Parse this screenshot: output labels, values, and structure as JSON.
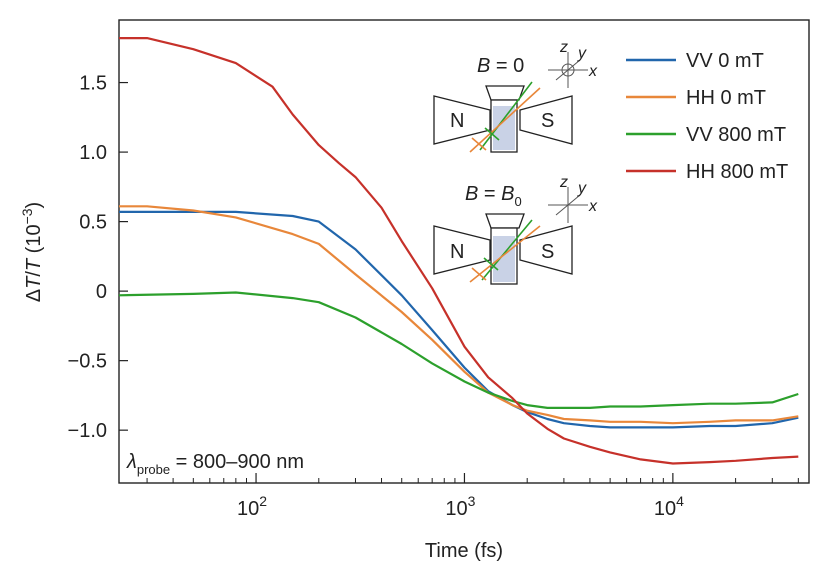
{
  "chart_data": {
    "type": "line",
    "x_scale": "log",
    "xlim": [
      22,
      45000
    ],
    "ylim": [
      -1.38,
      1.95
    ],
    "xlabel": "Time (fs)",
    "ylabel": {
      "delta": "Δ",
      "t1": "T",
      "slash": "/",
      "t2": "T",
      "unit_open": " (10",
      "unit_exp": "−3",
      "unit_close": ")"
    },
    "x_ticks": [
      {
        "value": 100,
        "base": "10",
        "exp": "2"
      },
      {
        "value": 1000,
        "base": "10",
        "exp": "3"
      },
      {
        "value": 10000,
        "base": "10",
        "exp": "4"
      }
    ],
    "y_ticks": [
      {
        "value": 1.5,
        "label": "1.5"
      },
      {
        "value": 1.0,
        "label": "1.0"
      },
      {
        "value": 0.5,
        "label": "0.5"
      },
      {
        "value": 0,
        "label": "0"
      },
      {
        "value": -0.5,
        "label": "−0.5"
      },
      {
        "value": -1.0,
        "label": "−1.0"
      }
    ],
    "grid": false,
    "legend_position": "top-right",
    "annotation": {
      "symbol": "λ",
      "sub": "probe",
      "text": " = 800–900 nm"
    },
    "series": [
      {
        "name": "VV 0 mT",
        "color": "#2166ac",
        "x": [
          22,
          40,
          80,
          150,
          200,
          300,
          500,
          700,
          1000,
          1300,
          1700,
          2000,
          2500,
          3000,
          4000,
          5000,
          7000,
          10000,
          15000,
          20000,
          30000,
          40000
        ],
        "y": [
          0.57,
          0.57,
          0.57,
          0.54,
          0.5,
          0.3,
          -0.03,
          -0.28,
          -0.55,
          -0.72,
          -0.82,
          -0.87,
          -0.92,
          -0.95,
          -0.97,
          -0.98,
          -0.98,
          -0.98,
          -0.97,
          -0.97,
          -0.95,
          -0.91
        ]
      },
      {
        "name": "HH 0 mT",
        "color": "#e8873a",
        "x": [
          22,
          30,
          50,
          80,
          150,
          200,
          300,
          500,
          700,
          1000,
          1300,
          1700,
          2000,
          2500,
          3000,
          4000,
          5000,
          7000,
          10000,
          15000,
          20000,
          30000,
          40000
        ],
        "y": [
          0.61,
          0.61,
          0.58,
          0.53,
          0.41,
          0.34,
          0.12,
          -0.15,
          -0.35,
          -0.58,
          -0.73,
          -0.82,
          -0.86,
          -0.89,
          -0.92,
          -0.93,
          -0.94,
          -0.94,
          -0.95,
          -0.94,
          -0.93,
          -0.93,
          -0.9
        ]
      },
      {
        "name": "VV 800 mT",
        "color": "#2ca02c",
        "x": [
          22,
          50,
          80,
          150,
          200,
          300,
          500,
          700,
          1000,
          1300,
          1700,
          2000,
          2500,
          3000,
          4000,
          5000,
          7000,
          10000,
          15000,
          20000,
          30000,
          40000
        ],
        "y": [
          -0.03,
          -0.02,
          -0.01,
          -0.05,
          -0.08,
          -0.19,
          -0.38,
          -0.52,
          -0.65,
          -0.73,
          -0.79,
          -0.82,
          -0.84,
          -0.84,
          -0.84,
          -0.83,
          -0.83,
          -0.82,
          -0.81,
          -0.81,
          -0.8,
          -0.74
        ]
      },
      {
        "name": "HH 800 mT",
        "color": "#c6312a",
        "x": [
          22,
          30,
          50,
          80,
          120,
          150,
          200,
          250,
          300,
          400,
          500,
          700,
          1000,
          1300,
          1700,
          2000,
          2500,
          3000,
          4000,
          5000,
          7000,
          10000,
          15000,
          20000,
          30000,
          40000
        ],
        "y": [
          1.82,
          1.82,
          1.74,
          1.64,
          1.47,
          1.27,
          1.05,
          0.92,
          0.82,
          0.6,
          0.36,
          0.02,
          -0.4,
          -0.62,
          -0.77,
          -0.88,
          -0.99,
          -1.06,
          -1.12,
          -1.16,
          -1.21,
          -1.24,
          -1.23,
          -1.22,
          -1.2,
          -1.19
        ]
      }
    ]
  },
  "inset": {
    "field_zero": {
      "b": "B",
      "eq": " = 0"
    },
    "field_b0": {
      "b": "B",
      "eq": " = ",
      "b0": "B",
      "sub": "0"
    },
    "magnet_n": "N",
    "magnet_s": "S",
    "axis_x": "x",
    "axis_y": "y",
    "axis_z": "z",
    "colors": {
      "cuvette": "#c9d2e6",
      "arrow_green": "#2ca02c",
      "arrow_orange": "#e8873a"
    }
  }
}
